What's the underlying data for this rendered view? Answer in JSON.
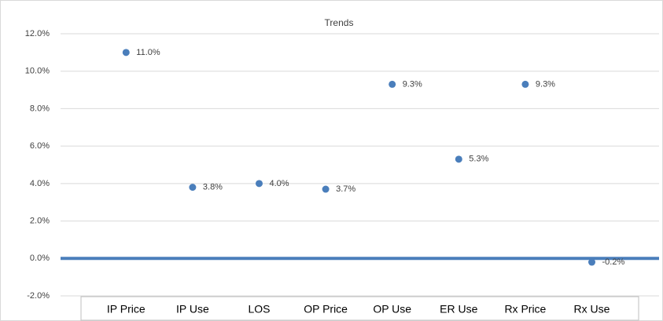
{
  "chart_data": {
    "type": "dot",
    "title": "Trends",
    "categories": [
      "IP Price",
      "IP Use",
      "LOS",
      "OP Price",
      "OP Use",
      "ER Use",
      "Rx Price",
      "Rx Use"
    ],
    "values": [
      11.0,
      3.8,
      4.0,
      3.7,
      9.3,
      5.3,
      9.3,
      -0.2
    ],
    "value_labels": [
      "11.0%",
      "3.8%",
      "4.0%",
      "3.7%",
      "9.3%",
      "5.3%",
      "9.3%",
      "-0.2%"
    ],
    "color": "#4a7ebb",
    "ylim": [
      -2,
      12
    ],
    "yticks": [
      {
        "value": -2,
        "label": "-2.0%"
      },
      {
        "value": 0,
        "label": "0.0%"
      },
      {
        "value": 2,
        "label": "2.0%"
      },
      {
        "value": 4,
        "label": "4.0%"
      },
      {
        "value": 6,
        "label": "6.0%"
      },
      {
        "value": 8,
        "label": "8.0%"
      },
      {
        "value": 10,
        "label": "10.0%"
      },
      {
        "value": 12,
        "label": "12.0%"
      }
    ],
    "grid": true
  }
}
